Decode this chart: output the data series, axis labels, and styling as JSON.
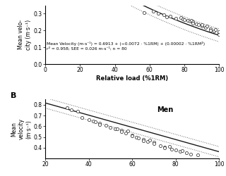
{
  "panel_A": {
    "ylabel_line1": "Mean velo-",
    "ylabel_line2": "city (m·s⁻¹)",
    "ylim": [
      0.0,
      0.35
    ],
    "yticks": [
      0.0,
      0.1,
      0.2,
      0.3
    ],
    "xlim": [
      0,
      100
    ],
    "xticks": [
      0,
      20,
      40,
      60,
      80,
      100
    ],
    "xlabel": "Relative load (%1RM)",
    "equation_line1": "Mean Velocity (m·s⁻¹) = 0.6913 + (−0.0072 · %1RM) + (0.00002 · %1RM²)",
    "stats_line2": "r² = 0.958; SEE = 0.026 m·s⁻¹; n = 80",
    "coef": [
      0.6913,
      -0.0072,
      2e-05
    ],
    "scatter_x": [
      57,
      62,
      65,
      68,
      70,
      72,
      75,
      78,
      79,
      80,
      82,
      83,
      84,
      85,
      85,
      87,
      88,
      90,
      90,
      92,
      93,
      95,
      95,
      97,
      98,
      100,
      100,
      100
    ],
    "scatter_y": [
      0.305,
      0.315,
      0.3,
      0.292,
      0.282,
      0.287,
      0.272,
      0.278,
      0.268,
      0.264,
      0.262,
      0.255,
      0.258,
      0.252,
      0.242,
      0.238,
      0.233,
      0.228,
      0.235,
      0.218,
      0.225,
      0.21,
      0.203,
      0.196,
      0.205,
      0.183,
      0.175,
      0.192
    ],
    "ci_factor": 0.038
  },
  "panel_B": {
    "ylabel": "Mean velocity (m·s⁻¹)",
    "ylabel_short": "t velocity (m·s⁻¹)",
    "ylim": [
      0.3,
      0.85
    ],
    "yticks": [
      0.4,
      0.5,
      0.6,
      0.7,
      0.8
    ],
    "xlim": [
      20,
      100
    ],
    "xticks": [
      20,
      40,
      60,
      80,
      100
    ],
    "label": "Men",
    "coef_linear": [
      0.932,
      -0.0057
    ],
    "scatter_x": [
      30,
      32,
      35,
      37,
      40,
      42,
      43,
      45,
      45,
      48,
      50,
      52,
      53,
      55,
      55,
      57,
      58,
      60,
      60,
      62,
      63,
      65,
      65,
      67,
      68,
      70,
      70,
      73,
      75,
      75,
      77,
      78,
      80,
      82,
      83,
      85,
      87,
      90
    ],
    "scatter_y": [
      0.775,
      0.755,
      0.74,
      0.68,
      0.66,
      0.65,
      0.64,
      0.63,
      0.618,
      0.608,
      0.59,
      0.575,
      0.578,
      0.562,
      0.548,
      0.535,
      0.555,
      0.52,
      0.51,
      0.5,
      0.49,
      0.478,
      0.462,
      0.455,
      0.468,
      0.448,
      0.435,
      0.42,
      0.408,
      0.398,
      0.412,
      0.388,
      0.378,
      0.365,
      0.375,
      0.355,
      0.342,
      0.335
    ],
    "ci_factor": 0.048
  },
  "line_color": "#1a1a1a",
  "scatter_facecolor": "white",
  "scatter_edgecolor": "#444444",
  "ci_color": "#666666"
}
